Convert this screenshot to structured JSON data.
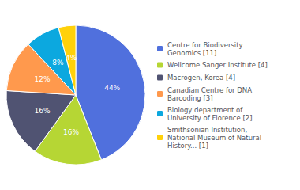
{
  "chart_data": {
    "type": "pie",
    "categories": [
      "Centre for Biodiversity\nGenomics [11]",
      "Wellcome Sanger Institute [4]",
      "Macrogen, Korea [4]",
      "Canadian Centre for DNA\nBarcoding [3]",
      "Biology department of\nUniversity of Florence [2]",
      "Smithsonian Institution,\nNational Museum of Natural\nHistory... [1]"
    ],
    "values": [
      44,
      16,
      16,
      12,
      8,
      4
    ],
    "value_labels": [
      "44%",
      "16%",
      "16%",
      "12%",
      "8%",
      "4%"
    ],
    "data_labels": true,
    "legend": "right"
  }
}
